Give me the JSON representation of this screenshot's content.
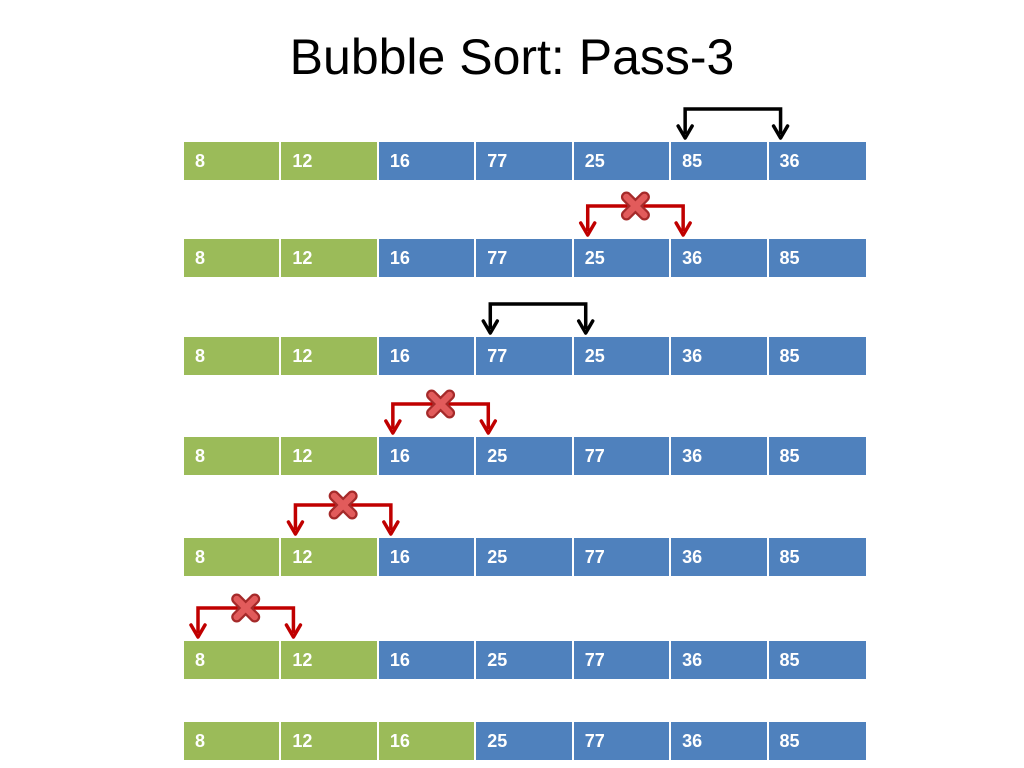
{
  "title": "Bubble Sort: Pass-3",
  "colors": {
    "sorted": "#9bbb59",
    "unsorted": "#4f81bd",
    "swap_arrow": "#000000",
    "no_swap_arrow": "#c00000"
  },
  "rows": [
    {
      "values": [
        "8",
        "12",
        "16",
        "77",
        "25",
        "85",
        "36"
      ],
      "sorted_count": 2
    },
    {
      "values": [
        "8",
        "12",
        "16",
        "77",
        "25",
        "36",
        "85"
      ],
      "sorted_count": 2
    },
    {
      "values": [
        "8",
        "12",
        "16",
        "77",
        "25",
        "36",
        "85"
      ],
      "sorted_count": 2
    },
    {
      "values": [
        "8",
        "12",
        "16",
        "25",
        "77",
        "36",
        "85"
      ],
      "sorted_count": 2
    },
    {
      "values": [
        "8",
        "12",
        "16",
        "25",
        "77",
        "36",
        "85"
      ],
      "sorted_count": 2
    },
    {
      "values": [
        "8",
        "12",
        "16",
        "25",
        "77",
        "36",
        "85"
      ],
      "sorted_count": 2
    },
    {
      "values": [
        "8",
        "12",
        "16",
        "25",
        "77",
        "36",
        "85"
      ],
      "sorted_count": 3
    }
  ],
  "comparisons": [
    {
      "above_row": 0,
      "left_index": 5,
      "swap": true,
      "icon": "swap-arrow-icon"
    },
    {
      "above_row": 1,
      "left_index": 4,
      "swap": false,
      "icon": "no-swap-arrow-icon"
    },
    {
      "above_row": 2,
      "left_index": 3,
      "swap": true,
      "icon": "swap-arrow-icon"
    },
    {
      "above_row": 3,
      "left_index": 2,
      "swap": false,
      "icon": "no-swap-arrow-icon"
    },
    {
      "above_row": 4,
      "left_index": 1,
      "swap": false,
      "icon": "no-swap-arrow-icon"
    },
    {
      "above_row": 5,
      "left_index": 0,
      "swap": false,
      "icon": "no-swap-arrow-icon"
    }
  ]
}
